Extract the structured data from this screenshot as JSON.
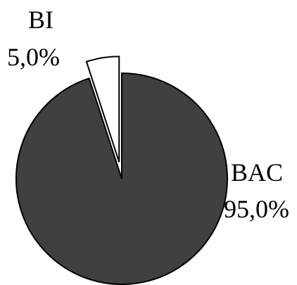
{
  "chart_data": {
    "type": "pie",
    "title": "",
    "slices": [
      {
        "label": "BAC",
        "value": 95.0,
        "value_label": "95,0%",
        "color": "#404040",
        "exploded": false
      },
      {
        "label": "BI",
        "value": 5.0,
        "value_label": "5,0%",
        "color": "#ffffff",
        "exploded": true
      }
    ],
    "legend": "none",
    "outline_color": "#000000"
  }
}
